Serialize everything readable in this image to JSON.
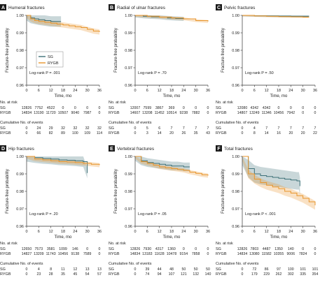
{
  "chart_data": [
    {
      "panel": "A",
      "type": "line",
      "title": "Humeral fractures",
      "xlabel": "Time, mo",
      "ylabel": "Fracture-free probability",
      "xlim": [
        0,
        36
      ],
      "ylim": [
        0.96,
        1.0
      ],
      "xticks": [
        0,
        6,
        12,
        18,
        24,
        30,
        36
      ],
      "yticks": [
        "0.96",
        "0.97",
        "0.98",
        "0.99",
        "1.00"
      ],
      "logrank": "Log-rank P = .001",
      "legend": {
        "placement": "center-left",
        "entries": [
          "SG",
          "RYGB"
        ]
      },
      "series": [
        {
          "name": "SG",
          "color": "#3d7078",
          "band": 0.003,
          "x": [
            0,
            2,
            4,
            6,
            9,
            12,
            15,
            17
          ],
          "y": [
            1.0,
            0.9985,
            0.998,
            0.9975,
            0.997,
            0.9965,
            0.9965,
            0.9965
          ]
        },
        {
          "name": "RYGB",
          "color": "#e8952b",
          "band": 0.0015,
          "x": [
            0,
            2,
            4,
            6,
            9,
            12,
            15,
            18,
            21,
            24,
            27,
            30,
            33,
            36
          ],
          "y": [
            1.0,
            0.998,
            0.997,
            0.9965,
            0.996,
            0.9955,
            0.995,
            0.9945,
            0.994,
            0.9935,
            0.993,
            0.992,
            0.991,
            0.9905
          ]
        }
      ],
      "risk_header": "No. at risk",
      "cum_header": "Cumulative No. of events",
      "at_risk": {
        "SG": [
          "12826",
          "7752",
          "4522",
          "0",
          "0",
          "0",
          "0"
        ],
        "RYGB": [
          "14834",
          "13190",
          "11720",
          "10507",
          "9040",
          "7987",
          "0"
        ]
      },
      "events": {
        "SG": [
          "0",
          "24",
          "29",
          "32",
          "32",
          "32",
          "32"
        ],
        "RYGB": [
          "0",
          "66",
          "82",
          "89",
          "100",
          "109",
          "114"
        ]
      }
    },
    {
      "panel": "B",
      "type": "line",
      "title": "Radial of ulnar fractures",
      "xlabel": "Time, mo",
      "ylabel": "Fracture-free probability",
      "xlim": [
        0,
        36
      ],
      "ylim": [
        0.96,
        1.0
      ],
      "xticks": [
        0,
        6,
        12,
        18,
        24,
        30,
        36
      ],
      "yticks": [
        "0.96",
        "0.97",
        "0.98",
        "0.99",
        "1.00"
      ],
      "logrank": "Log-rank P = .70",
      "series": [
        {
          "name": "SG",
          "color": "#3d7078",
          "band": 0.0012,
          "x": [
            0,
            4,
            8,
            12,
            16,
            20,
            24
          ],
          "y": [
            1.0,
            0.9995,
            0.9992,
            0.999,
            0.9985,
            0.9982,
            0.998
          ]
        },
        {
          "name": "RYGB",
          "color": "#e8952b",
          "band": 0.0008,
          "x": [
            0,
            6,
            12,
            18,
            24,
            30,
            36
          ],
          "y": [
            1.0,
            0.9995,
            0.999,
            0.9985,
            0.998,
            0.997,
            0.9965
          ]
        }
      ],
      "risk_header": "No. at risk",
      "cum_header": "Cumulative No. of events",
      "at_risk": {
        "SG": [
          "12007",
          "7599",
          "3867",
          "369",
          "0",
          "0",
          "0"
        ],
        "RYGB": [
          "14607",
          "13208",
          "11452",
          "10514",
          "9238",
          "7882",
          "0"
        ]
      },
      "events": {
        "SG": [
          "0",
          "5",
          "6",
          "7",
          "7",
          "7",
          "7"
        ],
        "RYGB": [
          "0",
          "3",
          "14",
          "20",
          "26",
          "35",
          "43"
        ]
      }
    },
    {
      "panel": "C",
      "type": "line",
      "title": "Pelvic fractures",
      "xlabel": "Time, mo",
      "ylabel": "Fracture-free probability",
      "xlim": [
        0,
        36
      ],
      "ylim": [
        0.96,
        1.0
      ],
      "xticks": [
        0,
        6,
        12,
        18,
        24,
        30,
        36
      ],
      "yticks": [
        "0.96",
        "0.97",
        "0.98",
        "0.99",
        "1.00"
      ],
      "logrank": "Log-rank P = .50",
      "series": [
        {
          "name": "SG",
          "color": "#3d7078",
          "band": 0.0006,
          "x": [
            0,
            6,
            12,
            18,
            24,
            30,
            33
          ],
          "y": [
            1.0,
            0.9998,
            0.9997,
            0.9996,
            0.9995,
            0.9995,
            0.9995
          ]
        },
        {
          "name": "RYGB",
          "color": "#e8952b",
          "band": 0.0005,
          "x": [
            0,
            6,
            12,
            18,
            24,
            30,
            33
          ],
          "y": [
            1.0,
            0.9997,
            0.9995,
            0.9993,
            0.9992,
            0.999,
            0.999
          ]
        }
      ],
      "risk_header": "No. at risk",
      "cum_header": "Cumulative No. of events",
      "at_risk": {
        "SG": [
          "12080",
          "4342",
          "4342",
          "0",
          "0",
          "0",
          "0"
        ],
        "RYGB": [
          "14807",
          "13249",
          "11346",
          "10456",
          "7942",
          "0",
          "0"
        ]
      },
      "events": {
        "SG": [
          "0",
          "4",
          "7",
          "7",
          "7",
          "7",
          "7"
        ],
        "RYGB": [
          "0",
          "8",
          "14",
          "16",
          "20",
          "20",
          "22"
        ]
      }
    },
    {
      "panel": "D",
      "type": "line",
      "title": "Hip fractures",
      "xlabel": "Time, mo",
      "ylabel": "Fracture-free probability",
      "xlim": [
        0,
        36
      ],
      "ylim": [
        0.96,
        1.0
      ],
      "xticks": [
        0,
        6,
        12,
        18,
        24,
        30,
        36
      ],
      "yticks": [
        "0.96",
        "0.97",
        "0.98",
        "0.99",
        "1.00"
      ],
      "logrank": "Log-rank P = .20",
      "series": [
        {
          "name": "SG",
          "color": "#3d7078",
          "band": 0.003,
          "x": [
            0,
            4,
            8,
            12,
            16,
            20,
            24,
            28,
            30
          ],
          "y": [
            1.0,
            0.9993,
            0.9988,
            0.9985,
            0.998,
            0.9978,
            0.9975,
            0.997,
            0.9905
          ]
        },
        {
          "name": "RYGB",
          "color": "#e8952b",
          "band": 0.0012,
          "x": [
            0,
            4,
            8,
            12,
            16,
            20,
            24,
            28,
            32,
            36
          ],
          "y": [
            1.0,
            0.9985,
            0.998,
            0.9975,
            0.997,
            0.9968,
            0.9965,
            0.996,
            0.9955,
            0.995
          ]
        }
      ],
      "risk_header": "No. at risk",
      "cum_header": "Cumulative No. of events",
      "at_risk": {
        "SG": [
          "12650",
          "7573",
          "3581",
          "1099",
          "146",
          "0",
          "0"
        ],
        "RYGB": [
          "14827",
          "13209",
          "11743",
          "10456",
          "9138",
          "7589",
          "0"
        ]
      },
      "events": {
        "SG": [
          "0",
          "4",
          "8",
          "11",
          "12",
          "13",
          "13"
        ],
        "RYGB": [
          "0",
          "23",
          "28",
          "35",
          "45",
          "54",
          "57"
        ]
      }
    },
    {
      "panel": "E",
      "type": "line",
      "title": "Vertebral fractures",
      "xlabel": "Time, mo",
      "ylabel": "Fracture-free probability",
      "xlim": [
        0,
        36
      ],
      "ylim": [
        0.96,
        1.0
      ],
      "xticks": [
        0,
        6,
        12,
        18,
        24,
        30,
        36
      ],
      "yticks": [
        "0.96",
        "0.97",
        "0.98",
        "0.99",
        "1.00"
      ],
      "logrank": "Log-rank P = .05",
      "series": [
        {
          "name": "SG",
          "color": "#3d7078",
          "band": 0.0025,
          "x": [
            0,
            3,
            6,
            9,
            12,
            15,
            18,
            21,
            24,
            27
          ],
          "y": [
            1.0,
            0.9975,
            0.9965,
            0.996,
            0.9955,
            0.995,
            0.9945,
            0.9945,
            0.994,
            0.994
          ]
        },
        {
          "name": "RYGB",
          "color": "#e8952b",
          "band": 0.0012,
          "x": [
            0,
            3,
            6,
            9,
            12,
            15,
            18,
            21,
            24,
            27,
            30,
            33,
            36
          ],
          "y": [
            1.0,
            0.997,
            0.996,
            0.995,
            0.994,
            0.9935,
            0.993,
            0.9925,
            0.992,
            0.991,
            0.9903,
            0.9895,
            0.989
          ]
        }
      ],
      "risk_header": "No. at risk",
      "cum_header": "Cumulative No. of events",
      "at_risk": {
        "SG": [
          "12826",
          "7930",
          "4317",
          "1360",
          "0",
          "0",
          "0"
        ],
        "RYGB": [
          "14834",
          "13183",
          "11628",
          "10478",
          "9154",
          "7858",
          "0"
        ]
      },
      "events": {
        "SG": [
          "0",
          "39",
          "44",
          "48",
          "50",
          "50",
          "50"
        ],
        "RYGB": [
          "0",
          "74",
          "94",
          "107",
          "121",
          "132",
          "140"
        ]
      }
    },
    {
      "panel": "F",
      "type": "line",
      "title": "Total fractures",
      "xlabel": "Time, mo",
      "ylabel": "Fracture-free probability",
      "xlim": [
        0,
        36
      ],
      "ylim": [
        0.96,
        1.0
      ],
      "xticks": [
        0,
        6,
        12,
        18,
        24,
        30,
        36
      ],
      "yticks": [
        "0.96",
        "0.97",
        "0.98",
        "0.99",
        "1.00"
      ],
      "logrank": "Log-rank P < .001",
      "series": [
        {
          "name": "SG",
          "color": "#3d7078",
          "band": 0.005,
          "x": [
            0,
            3,
            6,
            9,
            12,
            15,
            18,
            21,
            24,
            27,
            28,
            28.5
          ],
          "y": [
            1.0,
            0.993,
            0.99,
            0.989,
            0.9885,
            0.988,
            0.9875,
            0.987,
            0.9865,
            0.986,
            0.986,
            0.983
          ]
        },
        {
          "name": "RYGB",
          "color": "#e8952b",
          "band": 0.0025,
          "x": [
            0,
            3,
            6,
            9,
            12,
            15,
            18,
            21,
            24,
            27,
            30,
            33,
            36
          ],
          "y": [
            1.0,
            0.99,
            0.987,
            0.985,
            0.9835,
            0.9825,
            0.9815,
            0.98,
            0.979,
            0.9775,
            0.976,
            0.974,
            0.972
          ]
        }
      ],
      "risk_header": "No. at risk",
      "cum_header": "Cumulative No. of events",
      "at_risk": {
        "SG": [
          "12826",
          "7803",
          "4487",
          "1350",
          "140",
          "0",
          "0"
        ],
        "RYGB": [
          "14834",
          "13080",
          "11582",
          "10355",
          "9006",
          "7824",
          "0"
        ]
      },
      "events": {
        "SG": [
          "0",
          "72",
          "86",
          "97",
          "100",
          "101",
          "101"
        ],
        "RYGB": [
          "0",
          "179",
          "229",
          "262",
          "302",
          "335",
          "354"
        ]
      }
    }
  ]
}
